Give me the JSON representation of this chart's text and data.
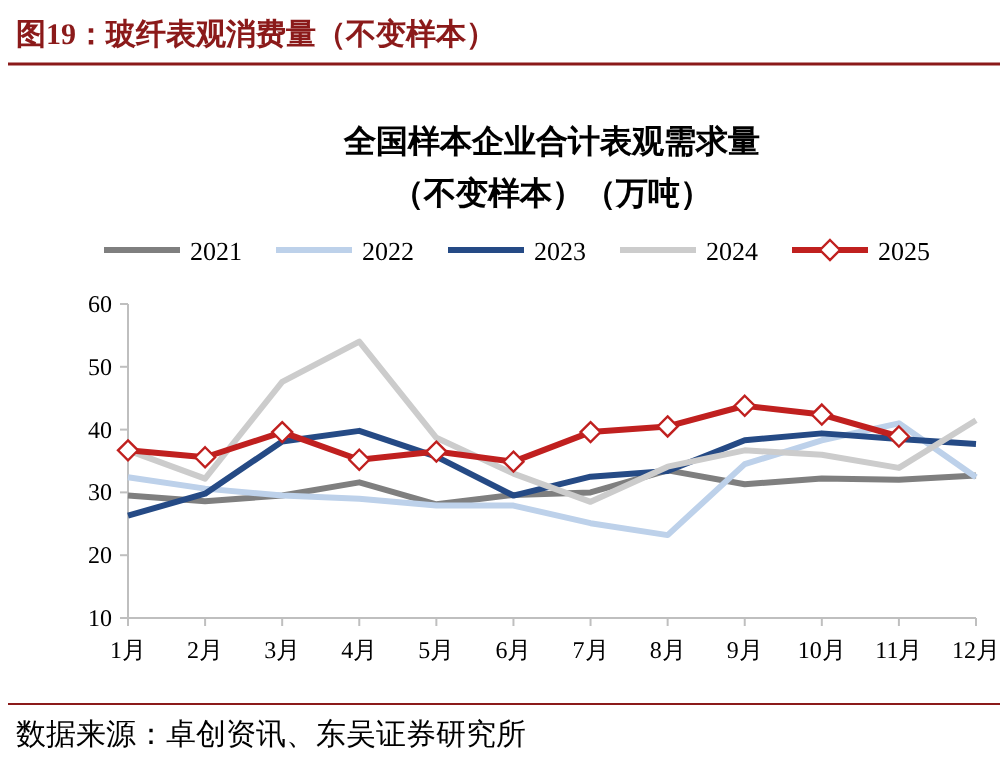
{
  "chart_data": {
    "type": "line",
    "title": "图19：玻纤表观消费量（不变样本）",
    "subtitle": "全国样本企业合计表观需求量（不变样本）（万吨）",
    "annotations": [
      "数据来源：卓创资讯、东吴证券研究所"
    ],
    "categories": [
      "1月",
      "2月",
      "3月",
      "4月",
      "5月",
      "6月",
      "7月",
      "8月",
      "9月",
      "10月",
      "11月",
      "12月"
    ],
    "ylim": [
      10,
      60
    ],
    "yticks": [
      10,
      20,
      30,
      40,
      50,
      60
    ],
    "grid": false,
    "legend": "top",
    "marker": "none",
    "line_style": "solid",
    "series": [
      {
        "name": "2021",
        "color": "#7f7f7f",
        "values": [
          29.5,
          28.6,
          29.5,
          31.6,
          28.1,
          29.6,
          30,
          33.5,
          31.3,
          32.2,
          32,
          32.7
        ]
      },
      {
        "name": "2022",
        "color": "#bdd1ea",
        "values": [
          32.4,
          30.6,
          29.5,
          29,
          27.9,
          27.9,
          25.1,
          23.2,
          34.5,
          38.3,
          41,
          32.4
        ]
      },
      {
        "name": "2023",
        "color": "#254a85",
        "values": [
          26.3,
          29.8,
          38.1,
          39.8,
          35.7,
          29.5,
          32.5,
          33.4,
          38.3,
          39.4,
          38.5,
          37.7
        ]
      },
      {
        "name": "2024",
        "color": "#cccccc",
        "values": [
          36.7,
          32.2,
          47.6,
          54,
          38.7,
          33,
          28.5,
          34.1,
          36.7,
          36,
          33.9,
          41.5
        ]
      },
      {
        "name": "2025",
        "color": "#c0201f",
        "marker": "diamond",
        "values": [
          36.7,
          35.6,
          39.6,
          35.2,
          36.5,
          34.9,
          39.6,
          40.5,
          43.8,
          42.4,
          38.9,
          null
        ]
      }
    ]
  }
}
